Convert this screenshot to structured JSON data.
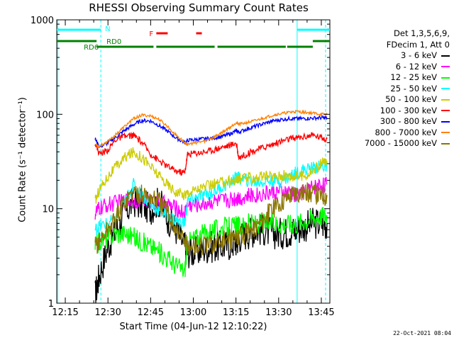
{
  "chart_data": {
    "type": "line",
    "title": "RHESSI Observing Summary Count Rates",
    "xlabel": "Start Time (04-Jun-12 12:10:22)",
    "ylabel": "Count Rate (s⁻¹ detector⁻¹)",
    "yscale": "log",
    "ylim": [
      1,
      1000
    ],
    "xlim_minutes": [
      12.0,
      108.0
    ],
    "x_tick_labels": [
      "12:15",
      "12:30",
      "12:45",
      "13:00",
      "13:15",
      "13:30",
      "13:45"
    ],
    "y_tick_labels": [
      "1",
      "10",
      "100",
      "1000"
    ],
    "legend_header": [
      "Det 1,3,5,6,9,",
      "FDecim 1, Att 0"
    ],
    "legend_placement": "right",
    "timestamp": "22-Oct-2021 08:04",
    "flags": {
      "saa_label": "N",
      "rd0_label": "RD0",
      "rd6_label": "RD6",
      "flare_label": "F",
      "night_intervals_minutes": [
        [
          12.0,
          27.5
        ],
        [
          96.5,
          108.0
        ]
      ],
      "rd0_intervals_minutes": [
        [
          26.0,
          46.0
        ],
        [
          47.0,
          67.5
        ],
        [
          68.5,
          92.5
        ],
        [
          93.0,
          102.0
        ]
      ],
      "rd6_intervals_minutes": [
        [
          12.0,
          26.0
        ],
        [
          102.0,
          108.0
        ]
      ],
      "flare_intervals_minutes": [
        [
          47.0,
          51.0
        ],
        [
          61.0,
          63.0
        ]
      ],
      "night_color": "#00ffff",
      "rd_color": "#008000",
      "flare_color": "#ff0000"
    },
    "x_minutes": [
      25.5,
      27,
      30,
      33,
      36,
      39,
      42,
      45,
      48,
      51,
      54,
      57,
      58,
      61,
      64,
      67,
      70,
      73,
      75,
      76,
      79,
      82,
      85,
      88,
      91,
      94,
      96,
      99,
      102,
      105,
      107
    ],
    "series": [
      {
        "name": "3 - 6 keV",
        "color": "#000000",
        "values": [
          1.2,
          2.0,
          4.0,
          6.0,
          9.0,
          12.0,
          11.0,
          10.0,
          12.0,
          8.0,
          6.0,
          4.0,
          3.5,
          3.5,
          3.8,
          4.0,
          4.0,
          4.2,
          4.5,
          5.0,
          5.5,
          6.0,
          6.0,
          5.5,
          5.5,
          5.8,
          6.0,
          6.5,
          7.0,
          7.0,
          7.0
        ]
      },
      {
        "name": "6 - 12 keV",
        "color": "#ff00ff",
        "values": [
          9.0,
          10.0,
          11.0,
          11.5,
          12.0,
          12.5,
          12.5,
          12.0,
          11.5,
          11.0,
          10.0,
          9.0,
          11.0,
          11.0,
          11.5,
          12.0,
          12.0,
          12.5,
          13.0,
          13.0,
          13.5,
          14.0,
          14.5,
          15.0,
          15.0,
          14.5,
          14.0,
          15.0,
          17.0,
          18.0,
          18.0
        ]
      },
      {
        "name": "12 - 25 keV",
        "color": "#00ff00",
        "values": [
          4.0,
          4.5,
          5.0,
          5.5,
          5.5,
          5.0,
          4.5,
          4.0,
          3.5,
          3.0,
          2.5,
          2.2,
          4.5,
          5.0,
          5.5,
          6.0,
          6.2,
          6.5,
          6.5,
          6.5,
          7.0,
          7.0,
          7.0,
          7.0,
          7.0,
          7.0,
          7.0,
          7.5,
          8.0,
          8.5,
          8.5
        ]
      },
      {
        "name": "25 - 50 keV",
        "color": "#00ffff",
        "values": [
          6.0,
          6.5,
          7.0,
          8.0,
          12.0,
          18.0,
          14.0,
          11.0,
          9.5,
          8.5,
          7.5,
          7.0,
          12.0,
          13.0,
          14.0,
          15.0,
          17.0,
          19.0,
          21.0,
          21.0,
          20.0,
          19.0,
          19.5,
          20.0,
          20.0,
          22.0,
          24.0,
          26.0,
          27.0,
          28.0,
          28.0
        ]
      },
      {
        "name": "50 - 100 keV",
        "color": "#cccc00",
        "values": [
          12.0,
          16.0,
          22.0,
          28.0,
          35.0,
          40.0,
          35.0,
          28.0,
          22.0,
          18.0,
          15.0,
          14.0,
          15.0,
          16.0,
          17.0,
          18.0,
          19.0,
          20.0,
          20.0,
          21.0,
          21.0,
          21.5,
          22.0,
          22.0,
          22.5,
          22.0,
          22.0,
          22.5,
          25.0,
          30.0,
          32.0
        ]
      },
      {
        "name": "100 - 300 keV",
        "color": "#ff0000",
        "values": [
          50.0,
          38.0,
          42.0,
          55.0,
          58.0,
          60.0,
          50.0,
          38.0,
          32.0,
          28.0,
          25.0,
          24.0,
          38.0,
          39.0,
          40.0,
          42.0,
          45.0,
          47.0,
          50.0,
          35.0,
          38.0,
          42.0,
          45.0,
          48.0,
          52.0,
          55.0,
          56.0,
          58.0,
          60.0,
          57.0,
          55.0
        ]
      },
      {
        "name": "300 - 800 keV",
        "color": "#0000ff",
        "values": [
          55.0,
          45.0,
          50.0,
          58.0,
          68.0,
          78.0,
          86.0,
          85.0,
          76.0,
          66.0,
          56.0,
          50.0,
          53.0,
          54.0,
          55.0,
          56.0,
          58.0,
          62.0,
          67.0,
          65.0,
          70.0,
          75.0,
          80.0,
          85.0,
          88.0,
          90.0,
          90.0,
          90.0,
          91.0,
          92.0,
          92.0
        ]
      },
      {
        "name": "800 - 7000 keV",
        "color": "#ff8000",
        "values": [
          48.0,
          46.0,
          52.0,
          62.0,
          75.0,
          90.0,
          98.0,
          96.0,
          88.0,
          74.0,
          60.0,
          50.0,
          48.0,
          50.0,
          52.0,
          57.0,
          64.0,
          73.0,
          82.0,
          78.0,
          82.0,
          86.0,
          92.0,
          98.0,
          102.0,
          105.0,
          107.0,
          105.0,
          103.0,
          100.0,
          100.0
        ]
      },
      {
        "name": "7000 - 15000 keV",
        "color": "#8b7500",
        "values": [
          4.0,
          4.5,
          6.0,
          8.0,
          12.0,
          15.0,
          14.0,
          13.0,
          12.0,
          9.0,
          6.0,
          4.5,
          4.0,
          4.0,
          4.0,
          4.2,
          4.5,
          4.8,
          5.0,
          5.0,
          5.5,
          6.5,
          8.0,
          10.0,
          12.0,
          14.0,
          15.0,
          15.0,
          14.5,
          14.0,
          14.0
        ]
      }
    ]
  }
}
